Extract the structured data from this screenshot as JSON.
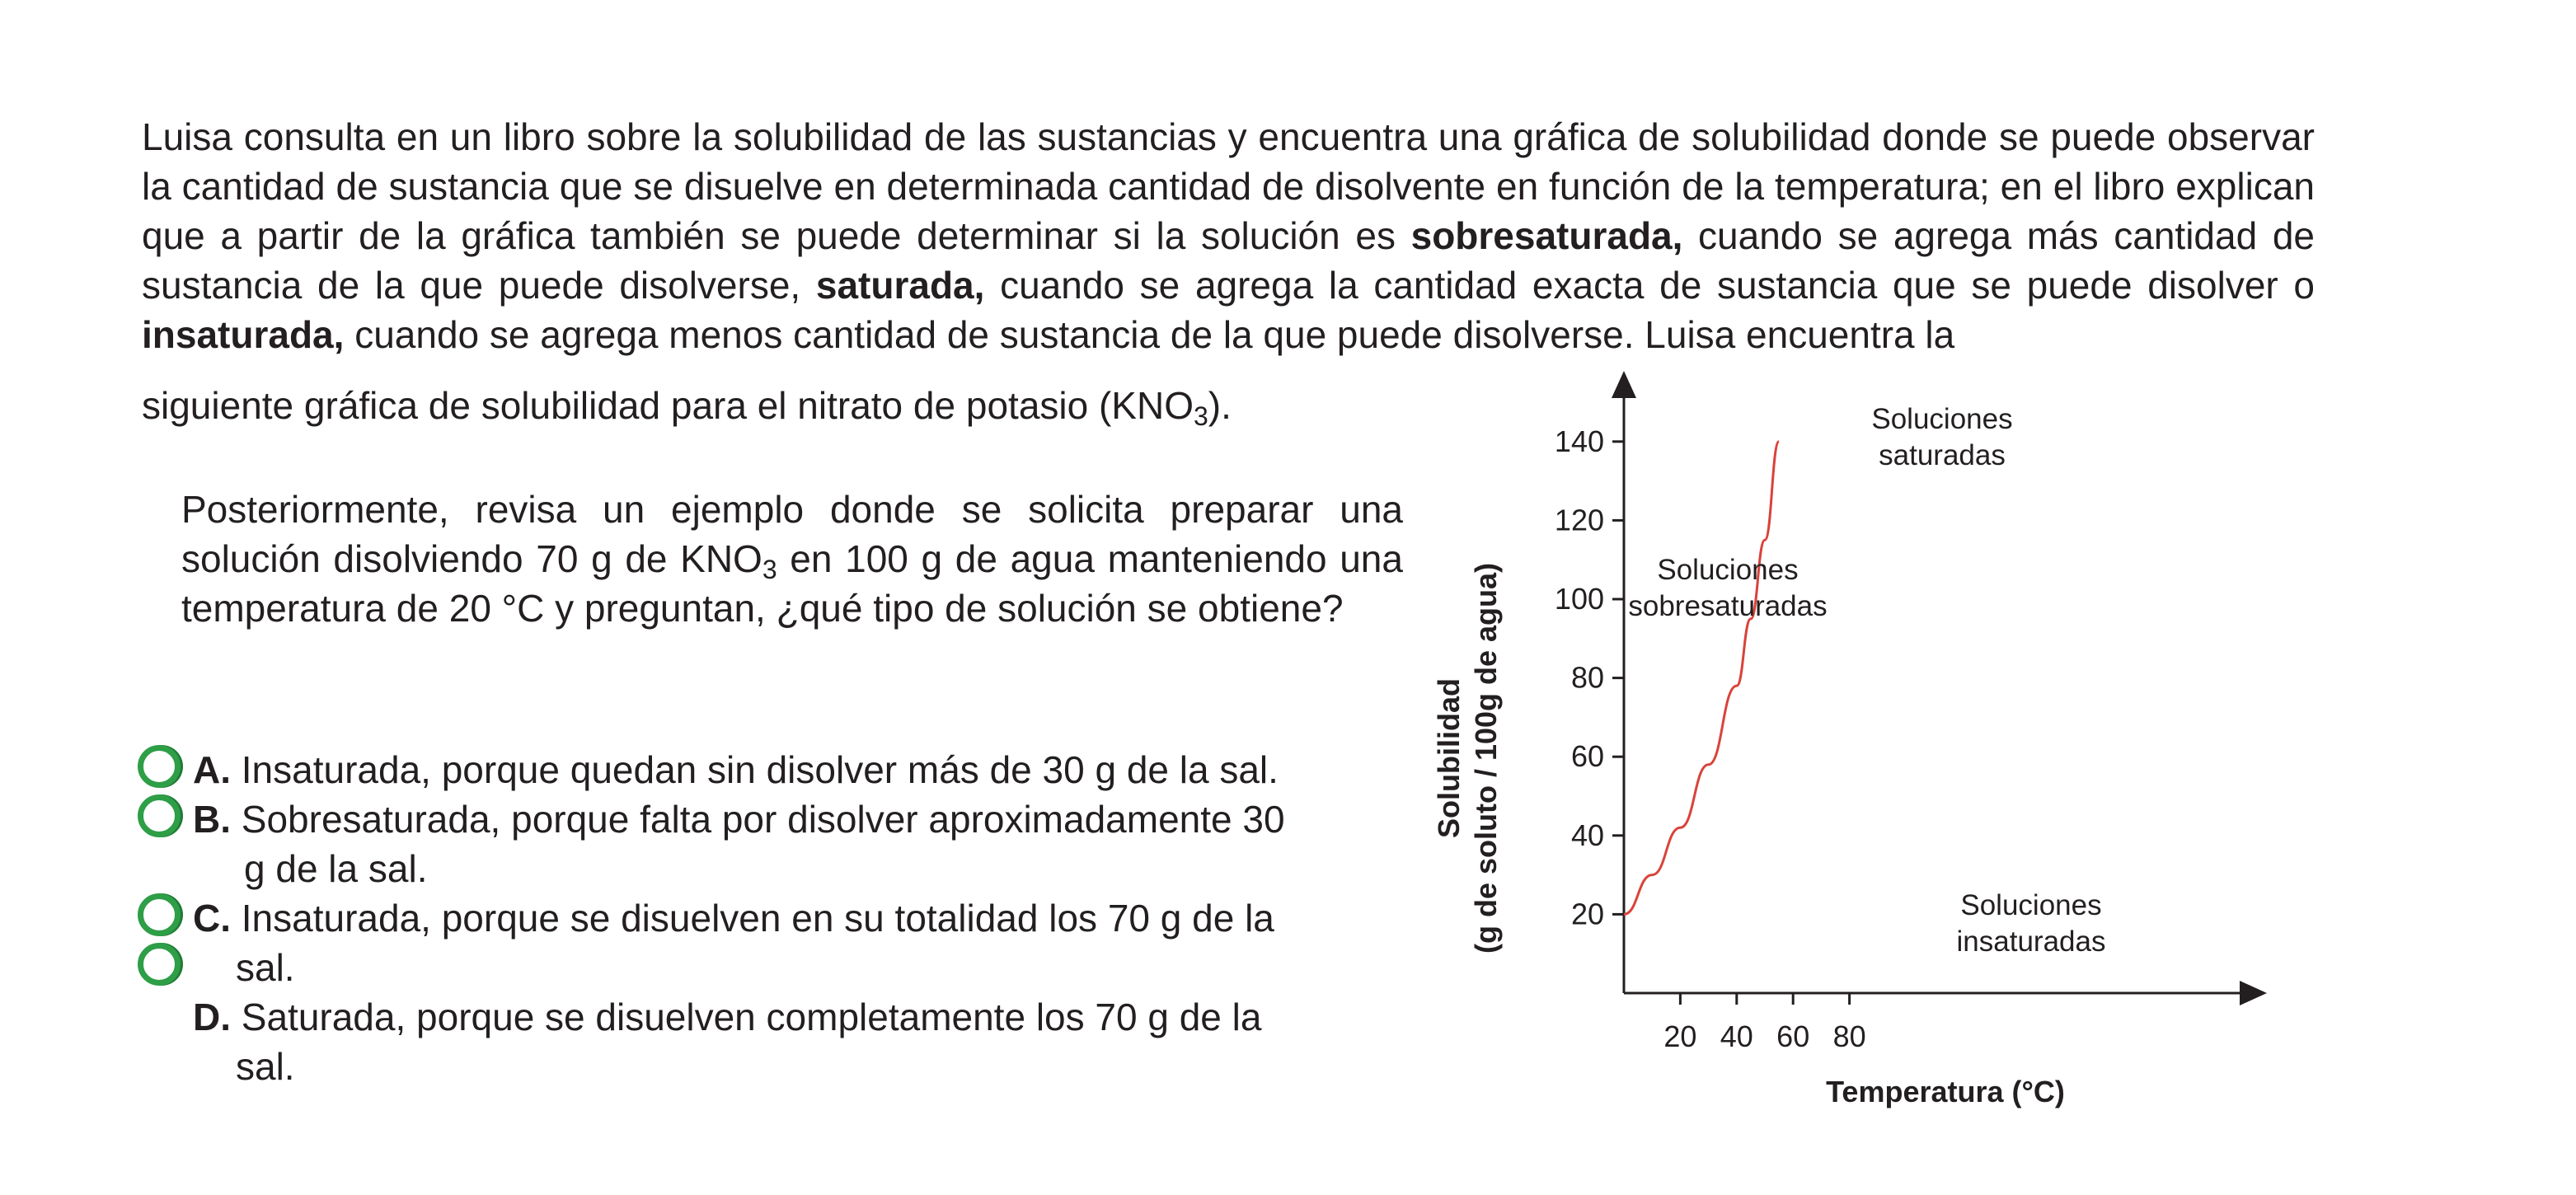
{
  "intro": {
    "line1": "Luisa consulta en un libro sobre la solubilidad de las sustancias y encuentra una gráfica de solubilidad donde se puede observar la cantidad de sustancia que se disuelve en determinada cantidad de disolvente en función de la temperatura; en el libro explican que a partir de la gráfica también se puede determinar si la solución es ",
    "term1": "sobresaturada,",
    "line2": " cuando se agrega más cantidad de sustancia de la que puede disolverse, ",
    "term2": "saturada,",
    "line3": " cuando se agrega la cantidad exacta de sustancia que se puede disolver o ",
    "term3": "insaturada,",
    "line4": " cuando se agrega menos cantidad de sustancia de la que puede disolverse. Luisa encuentra la",
    "last_line": "siguiente gráfica de solubilidad para el nitrato de potasio (KNO",
    "last_sub": "3",
    "last_end": ")."
  },
  "example": {
    "part1": "Posteriormente, revisa un ejemplo donde se solicita preparar una solución disolviendo 70 g de KNO",
    "sub": "3",
    "part2": " en 100 g de agua manteniendo una temperatura de 20 °C y preguntan, ¿qué tipo de solución se obtiene?"
  },
  "options": [
    {
      "letter": "A.",
      "text": "Insaturada, porque quedan sin disolver más de 30 g de la sal."
    },
    {
      "letter": "B.",
      "text": "Sobresaturada, porque falta por disolver aproximadamente 30",
      "text2": "g de la sal."
    },
    {
      "letter": "C.",
      "text": "Insaturada, porque se disuelven en su totalidad los 70 g de la",
      "text2": "sal."
    },
    {
      "letter": "D.",
      "text": "Saturada, porque se disuelven completamente los 70 g de la",
      "text2": "sal."
    }
  ],
  "chart_data": {
    "type": "line",
    "xlabel": "Temperatura (°C)",
    "ylabel_line1": "Solubilidad",
    "ylabel_line2": "(g de soluto / 100g de agua)",
    "x_ticks": [
      "20",
      "40",
      "60",
      "80"
    ],
    "y_ticks": [
      "20",
      "40",
      "60",
      "80",
      "100",
      "120",
      "140"
    ],
    "xlim": [
      0,
      112
    ],
    "ylim": [
      0,
      155
    ],
    "series": [
      {
        "color": "#d9433a",
        "x": [
          0,
          10,
          20,
          30,
          40,
          45,
          50,
          55
        ],
        "y": [
          20,
          30,
          42,
          58,
          78,
          95,
          115,
          140
        ]
      }
    ],
    "annotations": [
      {
        "line1": "Soluciones",
        "line2": "saturadas",
        "position": "top-center"
      },
      {
        "line1": "Soluciones",
        "line2": "sobresaturadas",
        "position": "upper-left"
      },
      {
        "line1": "Soluciones",
        "line2": "insaturadas",
        "position": "lower-right"
      }
    ]
  },
  "colors": {
    "radio": "#2e9e47",
    "curve": "#d9433a"
  }
}
